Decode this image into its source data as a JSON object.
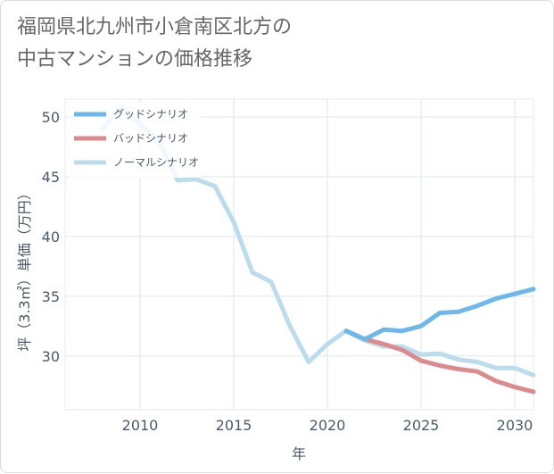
{
  "title_lines": [
    "福岡県北九州市小倉南区北方の",
    "中古マンションの価格推移"
  ],
  "chart_data": {
    "type": "line",
    "xlabel": "年",
    "ylabel": "坪（3.3㎡）単価（万円）",
    "xlim": [
      2006,
      2031
    ],
    "ylim": [
      25.5,
      51.5
    ],
    "x_ticks": [
      2010,
      2015,
      2020,
      2025,
      2030
    ],
    "y_ticks": [
      30,
      35,
      40,
      45,
      50
    ],
    "grid": true,
    "legend_position": "top-left",
    "series": [
      {
        "name": "グッドシナリオ",
        "color": "#6cb8ec",
        "x": [
          2021,
          2022,
          2023,
          2024,
          2025,
          2026,
          2027,
          2028,
          2029,
          2030,
          2031
        ],
        "y": [
          32.1,
          31.4,
          32.2,
          32.1,
          32.5,
          33.6,
          33.7,
          34.2,
          34.8,
          35.2,
          35.6
        ]
      },
      {
        "name": "バッドシナリオ",
        "color": "#dd8a8f",
        "x": [
          2021,
          2022,
          2023,
          2024,
          2025,
          2026,
          2027,
          2028,
          2029,
          2030,
          2031
        ],
        "y": [
          32.1,
          31.4,
          31.0,
          30.5,
          29.6,
          29.2,
          28.9,
          28.7,
          27.9,
          27.4,
          27.0
        ]
      },
      {
        "name": "ノーマルシナリオ",
        "color": "#badcec",
        "x": [
          2008,
          2009,
          2010,
          2011,
          2012,
          2013,
          2014,
          2015,
          2016,
          2017,
          2018,
          2019,
          2020,
          2021,
          2022,
          2023,
          2024,
          2025,
          2026,
          2027,
          2028,
          2029,
          2030,
          2031
        ],
        "y": [
          49.0,
          50.8,
          49.4,
          48.0,
          44.7,
          44.8,
          44.2,
          41.2,
          37.0,
          36.2,
          32.5,
          29.5,
          31.0,
          32.1,
          31.3,
          30.8,
          30.8,
          30.1,
          30.2,
          29.7,
          29.5,
          29.0,
          29.0,
          28.4
        ]
      }
    ]
  }
}
